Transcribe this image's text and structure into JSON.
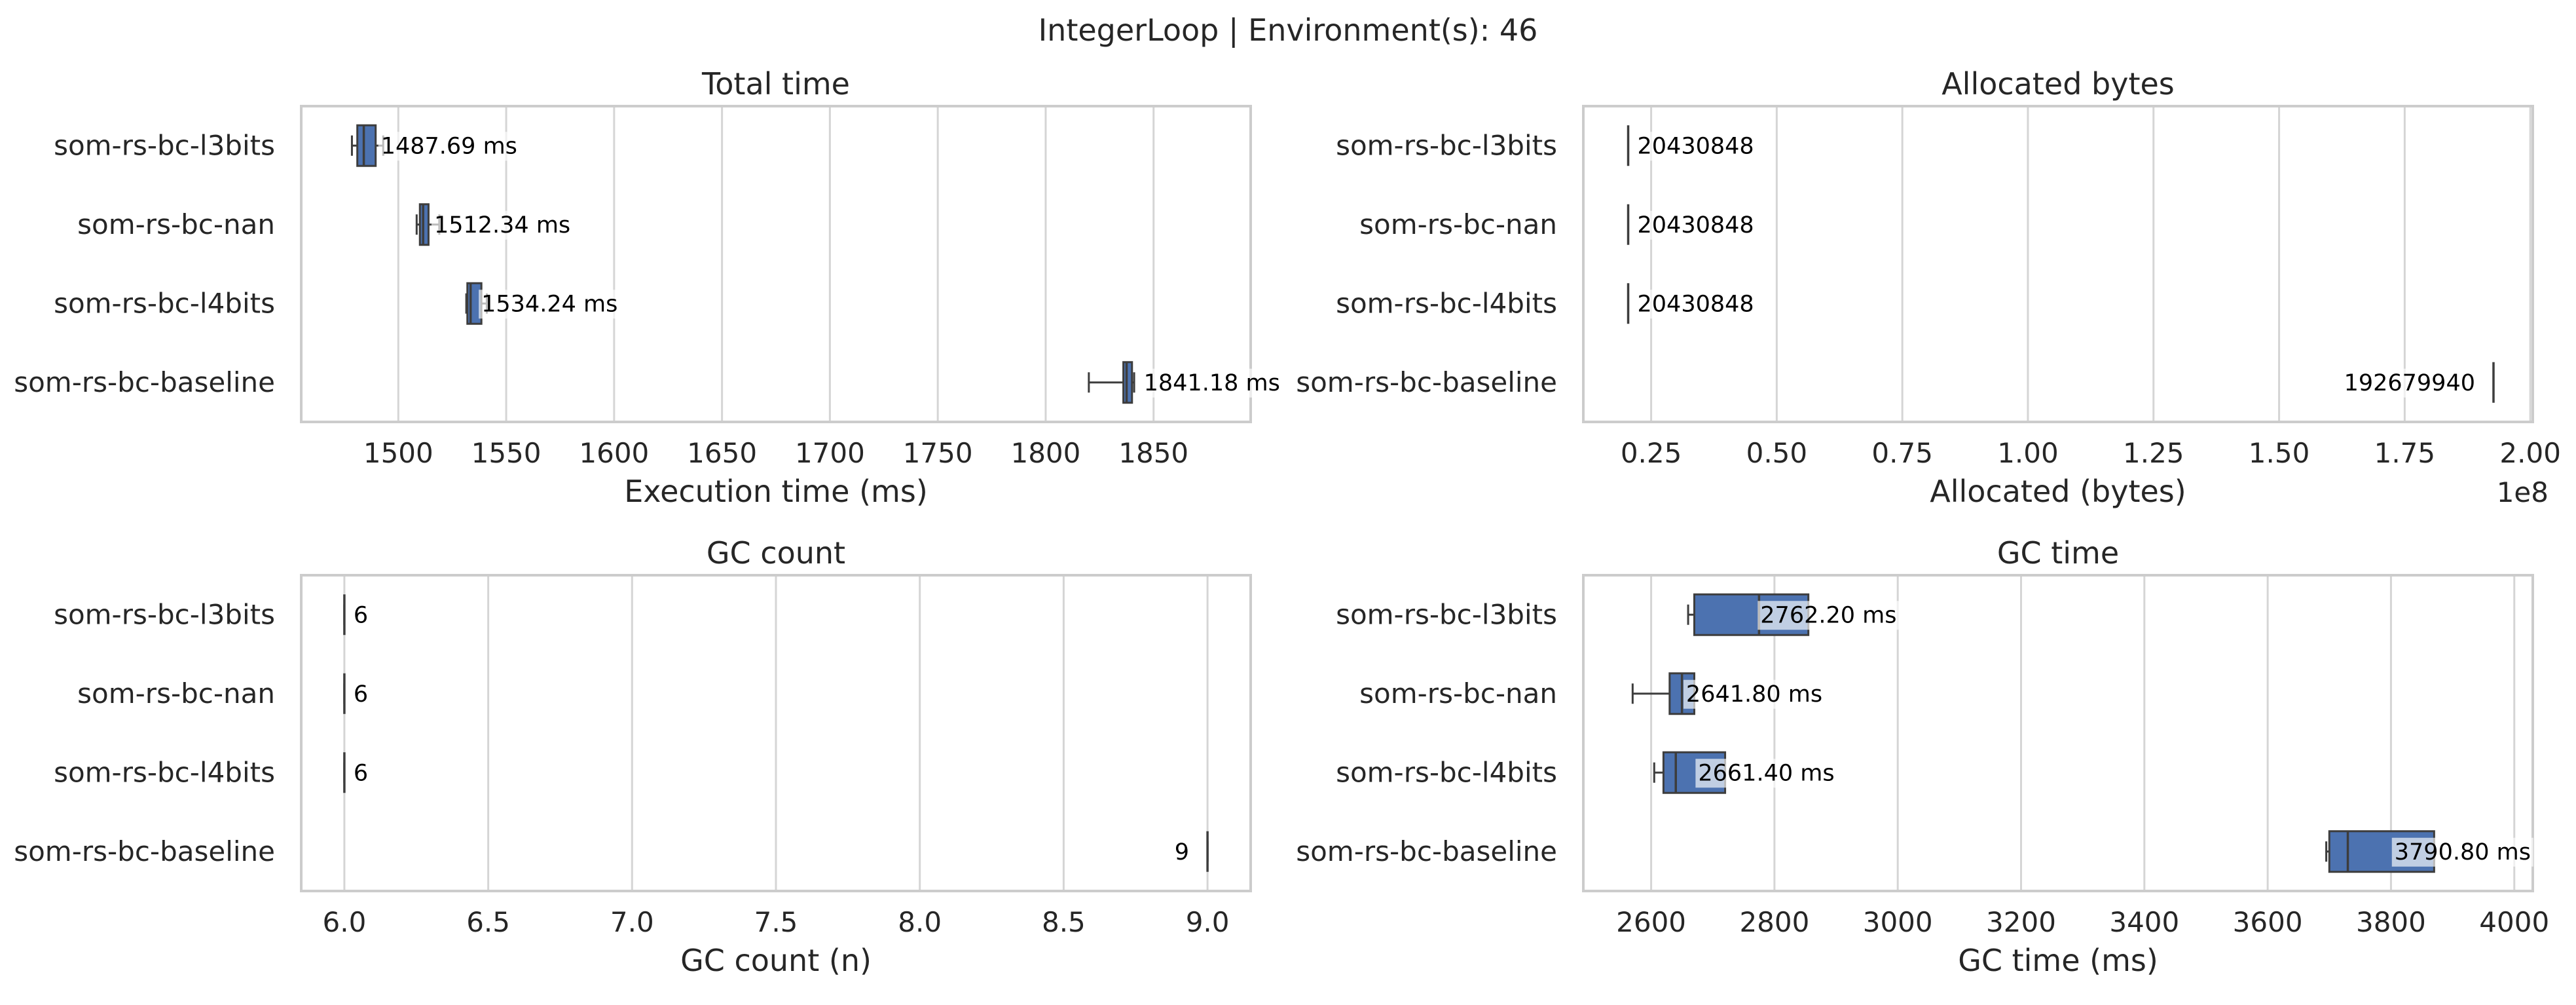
{
  "suptitle": "IntegerLoop | Environment(s): 46",
  "colors": {
    "box_fill": "#4c72b0",
    "box_edge": "#3d3d3d",
    "grid": "#d5d5d5",
    "frame": "#cccccc",
    "label_bg": "#ffffff"
  },
  "chart_data": [
    {
      "type": "box",
      "title": "Total time",
      "xlabel": "Execution time (ms)",
      "ylabel": "",
      "xlim": [
        1455,
        1895
      ],
      "xticks": [
        1500,
        1550,
        1600,
        1650,
        1700,
        1750,
        1800,
        1850
      ],
      "tick_labels": [
        "1500",
        "1550",
        "1600",
        "1650",
        "1700",
        "1750",
        "1800",
        "1850"
      ],
      "offset_text": "",
      "grid": true,
      "categories": [
        "som-rs-bc-l3bits",
        "som-rs-bc-nan",
        "som-rs-bc-l4bits",
        "som-rs-bc-baseline"
      ],
      "boxes": [
        {
          "whislo": 1478.5,
          "q1": 1481.0,
          "med": 1484.0,
          "q3": 1489.5,
          "whishi": 1493.0
        },
        {
          "whislo": 1508.5,
          "q1": 1510.0,
          "med": 1511.5,
          "q3": 1514.0,
          "whishi": 1519.0
        },
        {
          "whislo": 1531.5,
          "q1": 1532.0,
          "med": 1533.5,
          "q3": 1538.5,
          "whishi": 1541.0
        },
        {
          "whislo": 1820.0,
          "q1": 1836.0,
          "med": 1837.5,
          "q3": 1840.0,
          "whishi": 1841.0
        }
      ],
      "annotations": [
        "1487.69 ms",
        "1512.34 ms",
        "1534.24 ms",
        "1841.18 ms"
      ],
      "annotation_pos": [
        1487.69,
        1512.34,
        1534.24,
        1841.18
      ],
      "annotation_align": [
        "start",
        "start",
        "start",
        "start"
      ]
    },
    {
      "type": "box",
      "title": "Allocated bytes",
      "xlabel": "Allocated (bytes)",
      "ylabel": "",
      "xlim": [
        0.115,
        2.005
      ],
      "xticks": [
        0.25,
        0.5,
        0.75,
        1.0,
        1.25,
        1.5,
        1.75,
        2.0
      ],
      "tick_labels": [
        "0.25",
        "0.50",
        "0.75",
        "1.00",
        "1.25",
        "1.50",
        "1.75",
        "2.00"
      ],
      "offset_text": "1e8",
      "grid": true,
      "categories": [
        "som-rs-bc-l3bits",
        "som-rs-bc-nan",
        "som-rs-bc-l4bits",
        "som-rs-bc-baseline"
      ],
      "boxes": [
        {
          "whislo": 0.20430848,
          "q1": 0.20430848,
          "med": 0.20430848,
          "q3": 0.20430848,
          "whishi": 0.20430848
        },
        {
          "whislo": 0.20430848,
          "q1": 0.20430848,
          "med": 0.20430848,
          "q3": 0.20430848,
          "whishi": 0.20430848
        },
        {
          "whislo": 0.20430848,
          "q1": 0.20430848,
          "med": 0.20430848,
          "q3": 0.20430848,
          "whishi": 0.20430848
        },
        {
          "whislo": 1.9267994,
          "q1": 1.9267994,
          "med": 1.9267994,
          "q3": 1.9267994,
          "whishi": 1.9267994
        }
      ],
      "annotations": [
        "20430848",
        "20430848",
        "20430848",
        "192679940"
      ],
      "annotation_pos": [
        0.20430848,
        0.20430848,
        0.20430848,
        1.9267994
      ],
      "annotation_align": [
        "start",
        "start",
        "start",
        "end"
      ]
    },
    {
      "type": "box",
      "title": "GC count",
      "xlabel": "GC count (n)",
      "ylabel": "",
      "xlim": [
        5.85,
        9.15
      ],
      "xticks": [
        6.0,
        6.5,
        7.0,
        7.5,
        8.0,
        8.5,
        9.0
      ],
      "tick_labels": [
        "6.0",
        "6.5",
        "7.0",
        "7.5",
        "8.0",
        "8.5",
        "9.0"
      ],
      "offset_text": "",
      "grid": true,
      "categories": [
        "som-rs-bc-l3bits",
        "som-rs-bc-nan",
        "som-rs-bc-l4bits",
        "som-rs-bc-baseline"
      ],
      "boxes": [
        {
          "whislo": 6,
          "q1": 6,
          "med": 6,
          "q3": 6,
          "whishi": 6
        },
        {
          "whislo": 6,
          "q1": 6,
          "med": 6,
          "q3": 6,
          "whishi": 6
        },
        {
          "whislo": 6,
          "q1": 6,
          "med": 6,
          "q3": 6,
          "whishi": 6
        },
        {
          "whislo": 9,
          "q1": 9,
          "med": 9,
          "q3": 9,
          "whishi": 9
        }
      ],
      "annotations": [
        "6",
        "6",
        "6",
        "9"
      ],
      "annotation_pos": [
        6,
        6,
        6,
        9
      ],
      "annotation_align": [
        "start",
        "start",
        "start",
        "end"
      ]
    },
    {
      "type": "box",
      "title": "GC time",
      "xlabel": "GC time (ms)",
      "ylabel": "",
      "xlim": [
        2490,
        4030
      ],
      "xticks": [
        2600,
        2800,
        3000,
        3200,
        3400,
        3600,
        3800,
        4000
      ],
      "tick_labels": [
        "2600",
        "2800",
        "3000",
        "3200",
        "3400",
        "3600",
        "3800",
        "4000"
      ],
      "offset_text": "",
      "grid": true,
      "categories": [
        "som-rs-bc-l3bits",
        "som-rs-bc-nan",
        "som-rs-bc-l4bits",
        "som-rs-bc-baseline"
      ],
      "boxes": [
        {
          "whislo": 2660,
          "q1": 2670,
          "med": 2775,
          "q3": 2855,
          "whishi": 2855
        },
        {
          "whislo": 2570,
          "q1": 2630,
          "med": 2650,
          "q3": 2670,
          "whishi": 2670
        },
        {
          "whislo": 2605,
          "q1": 2620,
          "med": 2640,
          "q3": 2720,
          "whishi": 2720
        },
        {
          "whislo": 3695,
          "q1": 3700,
          "med": 3730,
          "q3": 3870,
          "whishi": 3870
        }
      ],
      "annotations": [
        "2762.20 ms",
        "2641.80 ms",
        "2661.40 ms",
        "3790.80 ms"
      ],
      "annotation_pos": [
        2762.2,
        2641.8,
        2661.4,
        3790.8
      ],
      "annotation_align": [
        "start",
        "start",
        "start",
        "start"
      ]
    }
  ]
}
